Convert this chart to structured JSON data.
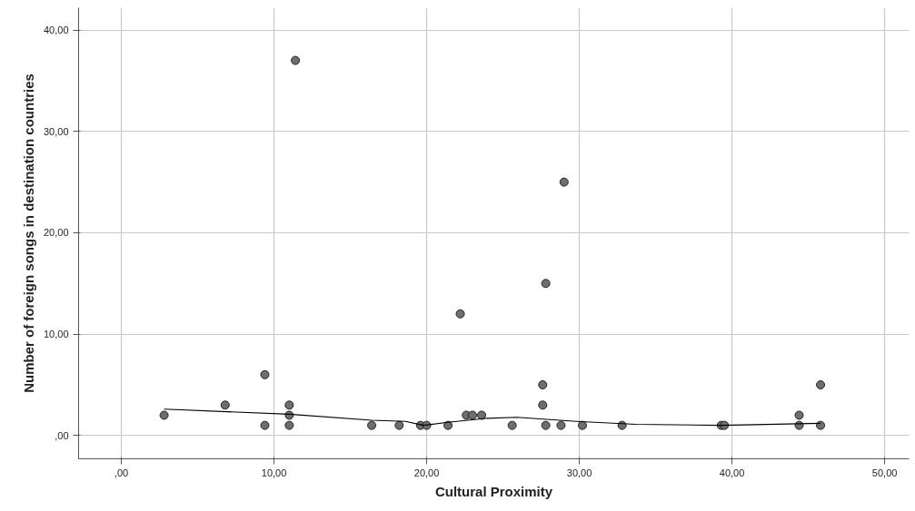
{
  "chart_data": {
    "type": "scatter",
    "xlabel": "Cultural Proximity",
    "ylabel": "Number of foreign songs in destination countries",
    "xlim": [
      -2.8,
      51.6
    ],
    "ylim": [
      -2.3,
      42.2
    ],
    "xticks": [
      {
        "value": 0,
        "label": ",00"
      },
      {
        "value": 10,
        "label": "10,00"
      },
      {
        "value": 20,
        "label": "20,00"
      },
      {
        "value": 30,
        "label": "30,00"
      },
      {
        "value": 40,
        "label": "40,00"
      },
      {
        "value": 50,
        "label": "50,00"
      }
    ],
    "yticks": [
      {
        "value": 0,
        "label": ",00"
      },
      {
        "value": 10,
        "label": "10,00"
      },
      {
        "value": 20,
        "label": "20,00"
      },
      {
        "value": 30,
        "label": "30,00"
      },
      {
        "value": 40,
        "label": "40,00"
      }
    ],
    "grid": true,
    "series": [
      {
        "marker": "circle",
        "color": "#6e6e6e",
        "x": [
          2.8,
          6.8,
          9.4,
          9.4,
          11.0,
          11.0,
          11.0,
          11.4,
          16.4,
          18.2,
          19.6,
          20.0,
          21.4,
          22.2,
          22.6,
          23.0,
          23.6,
          25.6,
          27.6,
          27.6,
          27.8,
          27.8,
          28.8,
          29.0,
          30.2,
          32.8,
          39.3,
          39.5,
          44.4,
          44.4,
          45.8,
          45.8
        ],
        "values": [
          2,
          3,
          6,
          1,
          3,
          2,
          1,
          37,
          1,
          1,
          1,
          1,
          1,
          12,
          2,
          2,
          2,
          1,
          5,
          3,
          15,
          1,
          1,
          25,
          1,
          1,
          1,
          1,
          2,
          1,
          5,
          1
        ]
      },
      {
        "type": "line",
        "marker": "none",
        "line_style": "solid",
        "color": "#000000",
        "x": [
          2.8,
          11.0,
          16.4,
          18.6,
          19.8,
          21.4,
          24.0,
          25.9,
          29.8,
          33.7,
          39.3,
          45.8
        ],
        "values": [
          2.6,
          2.1,
          1.5,
          1.4,
          1.0,
          1.3,
          1.7,
          1.8,
          1.4,
          1.1,
          1.0,
          1.2
        ]
      }
    ]
  }
}
